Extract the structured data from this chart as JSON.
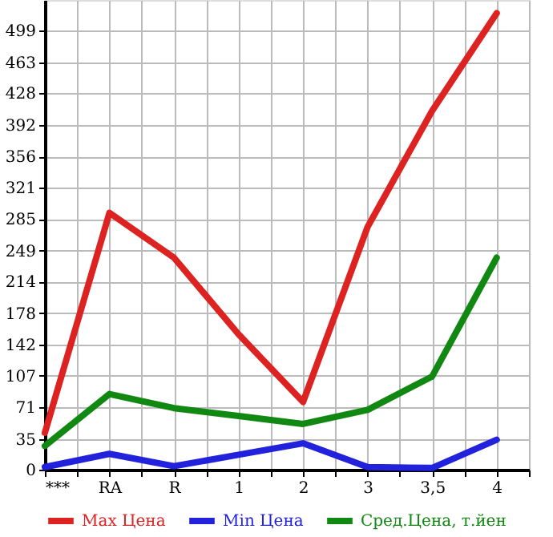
{
  "chart_data": {
    "type": "line",
    "categories": [
      "***",
      "RA",
      "R",
      "1",
      "2",
      "3",
      "3,5",
      "4"
    ],
    "series": [
      {
        "name": "Max Цена",
        "color": "#dd2222",
        "values": [
          42,
          292,
          241,
          154,
          77,
          276,
          408,
          519
        ]
      },
      {
        "name": "Min Цена",
        "color": "#2222dd",
        "values": [
          3,
          18,
          4,
          17,
          30,
          3,
          2,
          34
        ]
      },
      {
        "name": "Сред.Цена, т.йен",
        "color": "#118811",
        "values": [
          27,
          86,
          70,
          61,
          52,
          68,
          106,
          241
        ]
      }
    ],
    "ylim": [
      0,
      534
    ],
    "yticks": [
      0,
      35,
      71,
      107,
      142,
      178,
      214,
      249,
      285,
      321,
      356,
      392,
      428,
      463,
      499
    ],
    "grid": true,
    "legend": "bottom",
    "marker": "none",
    "line_style": "solid"
  }
}
